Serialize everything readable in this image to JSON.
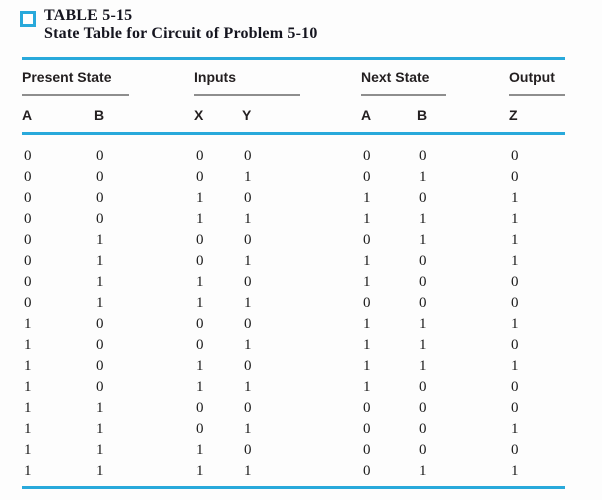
{
  "title": {
    "table_label": "TABLE 5-15",
    "subtitle": "State Table for Circuit of Problem 5-10"
  },
  "colors": {
    "accent_cyan": "#29a9db",
    "group_rule_gray": "#8e8e8e",
    "text": "#1b1b1b"
  },
  "table": {
    "groups": [
      {
        "label": "Present State",
        "columns": [
          "A",
          "B"
        ]
      },
      {
        "label": "Inputs",
        "columns": [
          "X",
          "Y"
        ]
      },
      {
        "label": "Next State",
        "columns": [
          "A",
          "B"
        ]
      },
      {
        "label": "Output",
        "columns": [
          "Z"
        ]
      }
    ],
    "rows": [
      [
        "0",
        "0",
        "0",
        "0",
        "0",
        "0",
        "0"
      ],
      [
        "0",
        "0",
        "0",
        "1",
        "0",
        "1",
        "0"
      ],
      [
        "0",
        "0",
        "1",
        "0",
        "1",
        "0",
        "1"
      ],
      [
        "0",
        "0",
        "1",
        "1",
        "1",
        "1",
        "1"
      ],
      [
        "0",
        "1",
        "0",
        "0",
        "0",
        "1",
        "1"
      ],
      [
        "0",
        "1",
        "0",
        "1",
        "1",
        "0",
        "1"
      ],
      [
        "0",
        "1",
        "1",
        "0",
        "1",
        "0",
        "0"
      ],
      [
        "0",
        "1",
        "1",
        "1",
        "0",
        "0",
        "0"
      ],
      [
        "1",
        "0",
        "0",
        "0",
        "1",
        "1",
        "1"
      ],
      [
        "1",
        "0",
        "0",
        "1",
        "1",
        "1",
        "0"
      ],
      [
        "1",
        "0",
        "1",
        "0",
        "1",
        "1",
        "1"
      ],
      [
        "1",
        "0",
        "1",
        "1",
        "1",
        "0",
        "0"
      ],
      [
        "1",
        "1",
        "0",
        "0",
        "0",
        "0",
        "0"
      ],
      [
        "1",
        "1",
        "0",
        "1",
        "0",
        "0",
        "1"
      ],
      [
        "1",
        "1",
        "1",
        "0",
        "0",
        "0",
        "0"
      ],
      [
        "1",
        "1",
        "1",
        "1",
        "0",
        "1",
        "1"
      ]
    ]
  }
}
